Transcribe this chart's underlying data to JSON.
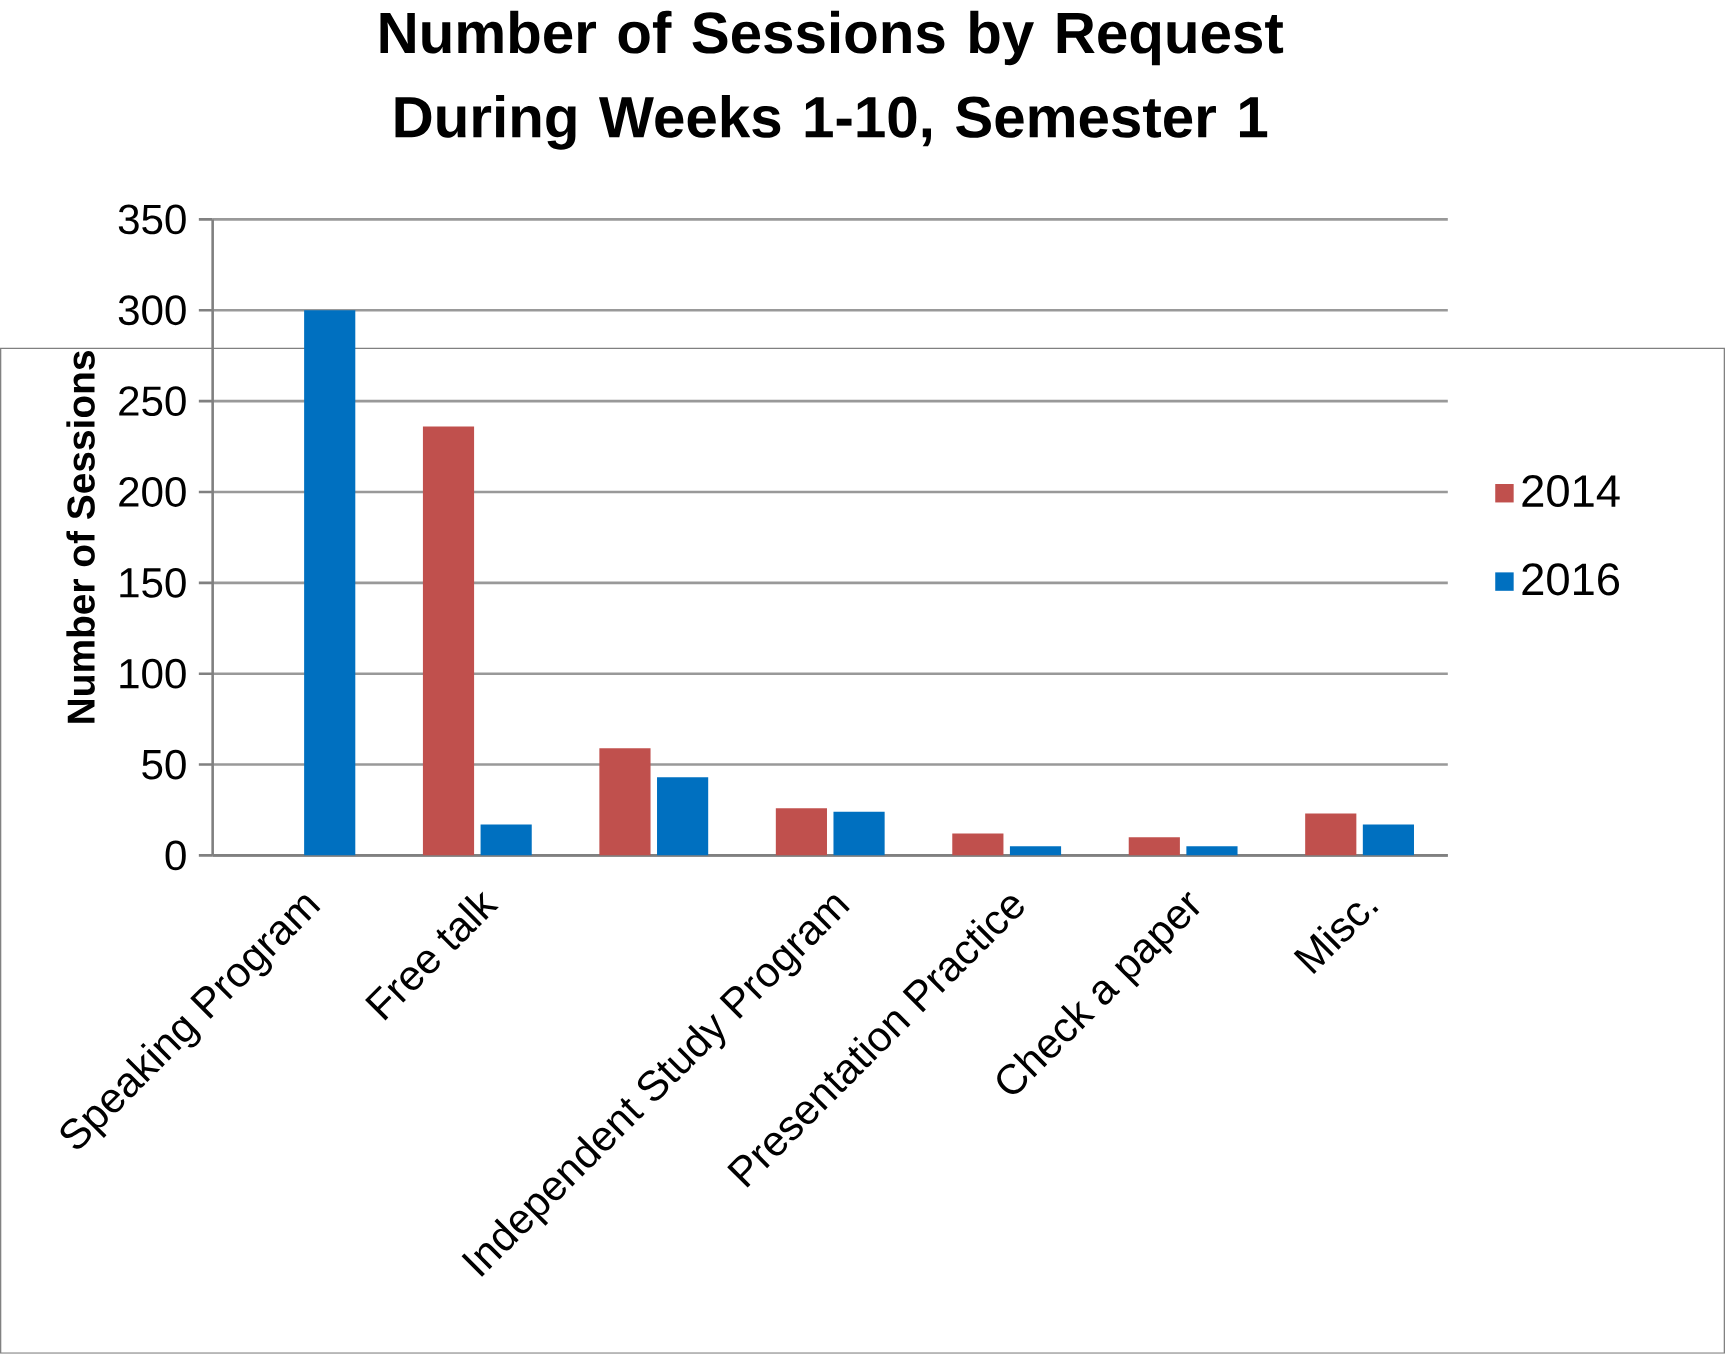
{
  "chart_data": {
    "type": "bar",
    "title": "Number of Sessions by Request During Weeks 1-10, Semester 1",
    "ylabel": "Number of Sessions",
    "categories": [
      "Speaking Program",
      "Free talk",
      null,
      "Independent Study Program",
      "Presentation Practice",
      "Check a paper",
      "Misc."
    ],
    "series": [
      {
        "name": "2014",
        "color": "#c0504d",
        "values": [
          0,
          236,
          59,
          26,
          12,
          10,
          23
        ]
      },
      {
        "name": "2016",
        "color": "#0070c0",
        "values": [
          300,
          17,
          43,
          24,
          5,
          5,
          17
        ]
      }
    ],
    "ylim": [
      0,
      350
    ],
    "yticks": [
      0,
      50,
      100,
      150,
      200,
      250,
      300,
      350
    ],
    "grid": "y",
    "legend": "right"
  }
}
